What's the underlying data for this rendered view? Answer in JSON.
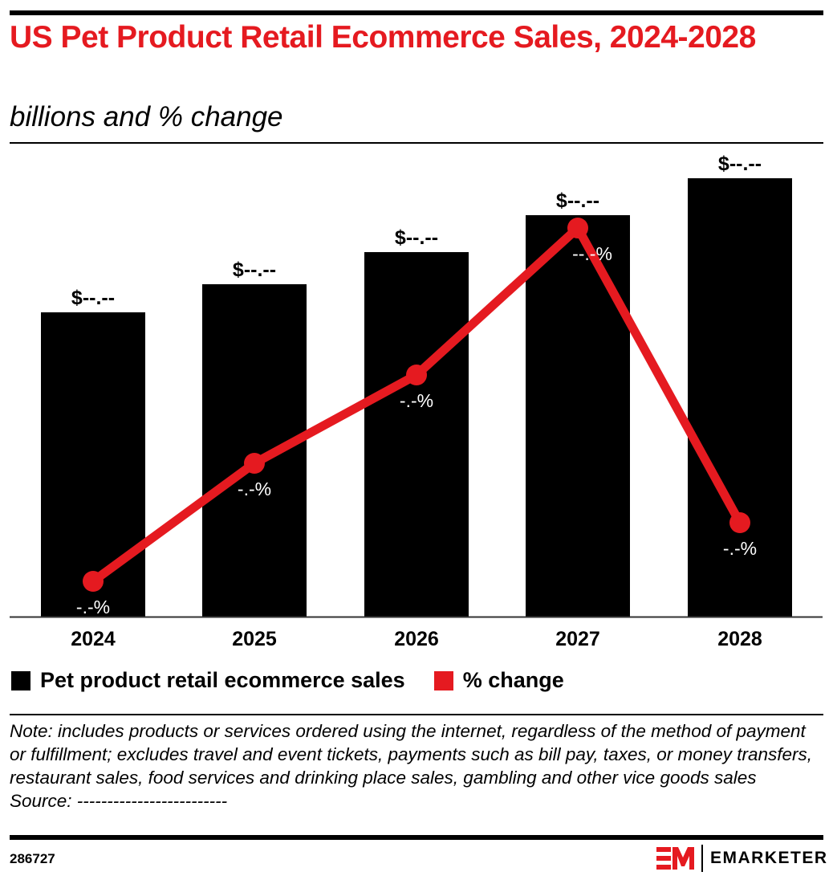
{
  "header": {
    "title": "US Pet Product Retail Ecommerce Sales, 2024-2028",
    "subtitle": "billions and % change"
  },
  "legend": {
    "items": [
      {
        "label": "Pet product retail ecommerce sales",
        "color": "#000000"
      },
      {
        "label": "% change",
        "color": "#e51a20"
      }
    ]
  },
  "footer": {
    "note": "Note: includes products or services ordered using the internet, regardless of the method of payment or fulfillment; excludes travel and event tickets, payments such as bill pay, taxes, or money transfers, restaurant sales, food services and drinking place sales, gambling and other vice goods sales",
    "source": "Source: -------------------------",
    "chart_id": "286727",
    "brand": "EMARKETER"
  },
  "colors": {
    "accent": "#e51a20",
    "bar": "#000000"
  },
  "chart_data": {
    "type": "bar",
    "title": "US Pet Product Retail Ecommerce Sales, 2024-2028",
    "subtitle": "billions and % change",
    "categories": [
      "2024",
      "2025",
      "2026",
      "2027",
      "2028"
    ],
    "series": [
      {
        "name": "Pet product retail ecommerce sales",
        "type": "bar",
        "labels": [
          "$--.--",
          "$--.--",
          "$--.--",
          "$--.--",
          "$--.--"
        ],
        "relative_heights": [
          379,
          414,
          454,
          500,
          546
        ]
      },
      {
        "name": "% change",
        "type": "line",
        "labels": [
          "-.-%",
          "-.-%",
          "-.-%",
          "--.-%",
          "-.-%"
        ],
        "relative_positions": [
          44,
          191,
          301,
          484,
          117
        ]
      }
    ],
    "values_redacted": true,
    "xlabel": "",
    "ylabel": "",
    "grid": false,
    "legend_position": "bottom"
  }
}
